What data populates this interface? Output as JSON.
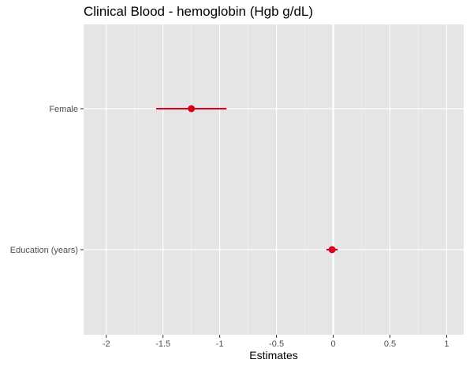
{
  "chart_data": {
    "type": "forest",
    "title": "Clinical Blood - hemoglobin (Hgb g/dL)",
    "xlabel": "Estimates",
    "ylabel": "",
    "xlim": [
      -2.2,
      1.15
    ],
    "x_ticks": [
      -2,
      -1.5,
      -1,
      -0.5,
      0,
      0.5,
      1
    ],
    "x_tick_labels": [
      "-2",
      "-1.5",
      "-1",
      "-0.5",
      "0",
      "0.5",
      "1"
    ],
    "reference_line": 0,
    "categories": [
      "Female",
      "Education (years)"
    ],
    "estimates": [
      {
        "term": "Female",
        "estimate": -1.25,
        "ci_low": -1.56,
        "ci_high": -0.94
      },
      {
        "term": "Education (years)",
        "estimate": -0.01,
        "ci_low": -0.06,
        "ci_high": 0.04
      }
    ],
    "grid": true,
    "colors": {
      "panel_background": "#e5e5e5",
      "grid_major": "#ffffff",
      "grid_minor": "#f2f2f2",
      "point": "#d7001c",
      "tick_text": "#4d4d4d",
      "axis_tick": "#333333"
    }
  }
}
